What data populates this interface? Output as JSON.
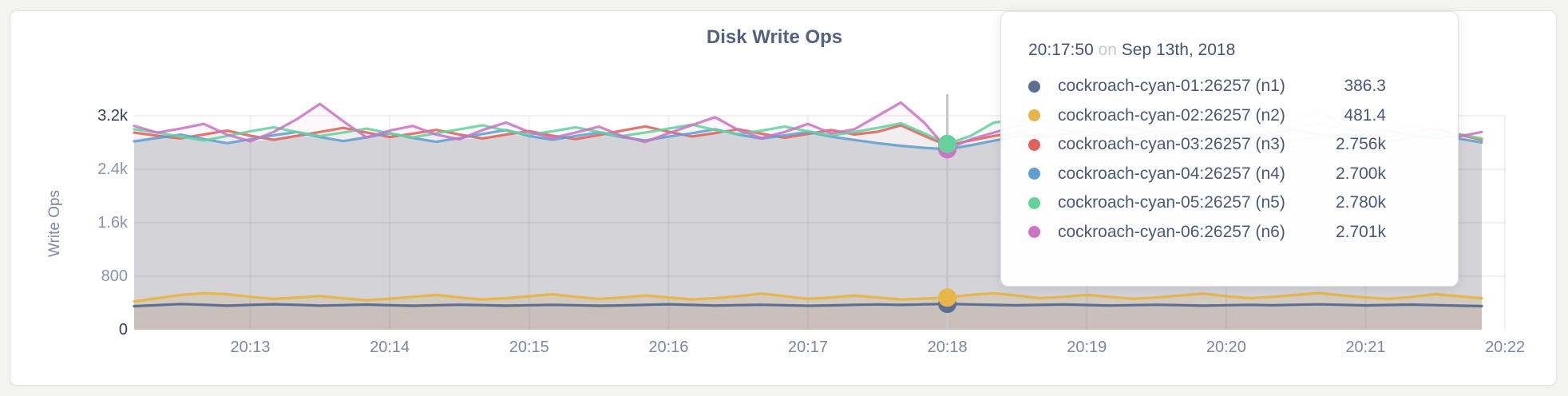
{
  "card": {
    "title": "Disk Write Ops"
  },
  "y_axis": {
    "label": "Write Ops",
    "ticks": [
      {
        "label": "3.2k",
        "value": 3200,
        "emphasis": true
      },
      {
        "label": "2.4k",
        "value": 2400,
        "emphasis": false
      },
      {
        "label": "1.6k",
        "value": 1600,
        "emphasis": false
      },
      {
        "label": "800",
        "value": 800,
        "emphasis": false
      },
      {
        "label": "0",
        "value": 0,
        "emphasis": true
      }
    ]
  },
  "x_axis": {
    "labels": [
      "20:13",
      "20:14",
      "20:15",
      "20:16",
      "20:17",
      "20:18",
      "20:19",
      "20:20",
      "20:21",
      "20:22"
    ]
  },
  "tooltip": {
    "time": "20:17:50",
    "preposition": "on",
    "date": "Sep 13th, 2018",
    "rows": [
      {
        "name": "cockroach-cyan-01:26257 (n1)",
        "value": "386.3",
        "color": "#5c6e91"
      },
      {
        "name": "cockroach-cyan-02:26257 (n2)",
        "value": "481.4",
        "color": "#e7b64b"
      },
      {
        "name": "cockroach-cyan-03:26257 (n3)",
        "value": "2.756k",
        "color": "#df625c"
      },
      {
        "name": "cockroach-cyan-04:26257 (n4)",
        "value": "2.700k",
        "color": "#5f9fd2"
      },
      {
        "name": "cockroach-cyan-05:26257 (n5)",
        "value": "2.780k",
        "color": "#67d19e"
      },
      {
        "name": "cockroach-cyan-06:26257 (n6)",
        "value": "2.701k",
        "color": "#cd74c4"
      }
    ]
  },
  "chart_data": {
    "type": "area",
    "title": "Disk Write Ops",
    "xlabel": "",
    "ylabel": "Write Ops",
    "ylim": [
      0,
      3200
    ],
    "grid": true,
    "x_window_start": "20:12:10",
    "x_window_end": "20:21:50",
    "x_step_seconds": 10,
    "x_tick_labels": [
      "20:13",
      "20:14",
      "20:15",
      "20:16",
      "20:17",
      "20:18",
      "20:19",
      "20:20",
      "20:21",
      "20:22"
    ],
    "hover": {
      "time": "20:17:50",
      "date": "Sep 13th, 2018",
      "index": 35
    },
    "series": [
      {
        "name": "cockroach-cyan-01:26257 (n1)",
        "color": "#5c6e91",
        "band": "low",
        "values": [
          352,
          368,
          384,
          374,
          360,
          371,
          381,
          372,
          361,
          368,
          376,
          366,
          358,
          366,
          374,
          368,
          360,
          366,
          372,
          366,
          358,
          364,
          372,
          381,
          371,
          362,
          368,
          374,
          366,
          358,
          364,
          372,
          379,
          371,
          380,
          386.3,
          379,
          371,
          365,
          371,
          377,
          370,
          362,
          368,
          374,
          368,
          360,
          366,
          372,
          366,
          374,
          380,
          372,
          364,
          370,
          376,
          368,
          360,
          354
        ]
      },
      {
        "name": "cockroach-cyan-02:26257 (n2)",
        "color": "#e7b64b",
        "band": "low",
        "values": [
          424,
          472,
          521,
          546,
          531,
          492,
          461,
          482,
          503,
          471,
          442,
          463,
          492,
          521,
          482,
          452,
          472,
          502,
          531,
          492,
          462,
          482,
          512,
          482,
          452,
          472,
          502,
          541,
          502,
          462,
          482,
          512,
          482,
          452,
          466,
          481.4,
          521,
          546,
          511,
          472,
          492,
          521,
          492,
          462,
          482,
          512,
          541,
          502,
          472,
          492,
          521,
          551,
          512,
          482,
          462,
          492,
          531,
          502,
          472
        ]
      },
      {
        "name": "cockroach-cyan-03:26257 (n3)",
        "color": "#df625c",
        "band": "high",
        "values": [
          2948,
          2901,
          2862,
          2921,
          2978,
          2902,
          2841,
          2899,
          2958,
          3018,
          2951,
          2882,
          2932,
          2989,
          2921,
          2861,
          2918,
          2971,
          2902,
          2851,
          2911,
          2978,
          3041,
          2961,
          2891,
          2941,
          2998,
          2931,
          2871,
          2929,
          2988,
          2921,
          2961,
          3058,
          2901,
          2756,
          2831,
          2898,
          2951,
          2881,
          2921,
          2968,
          2901,
          2851,
          2911,
          2958,
          3018,
          2951,
          2891,
          2941,
          2988,
          2921,
          2871,
          2931,
          2978,
          2911,
          2861,
          2918,
          2841
        ]
      },
      {
        "name": "cockroach-cyan-04:26257 (n4)",
        "color": "#5f9fd2",
        "band": "high",
        "values": [
          2818,
          2868,
          2918,
          2851,
          2791,
          2849,
          2908,
          2958,
          2881,
          2821,
          2878,
          2938,
          2868,
          2811,
          2868,
          2928,
          2988,
          2898,
          2841,
          2898,
          2948,
          2881,
          2831,
          2888,
          2938,
          2998,
          2918,
          2858,
          2908,
          2958,
          2888,
          2838,
          2791,
          2751,
          2721,
          2700,
          2758,
          2828,
          2888,
          2928,
          2858,
          2811,
          2868,
          2918,
          2978,
          2898,
          2848,
          2898,
          2948,
          2878,
          2831,
          2888,
          2938,
          2868,
          2821,
          2878,
          2928,
          2858,
          2801
        ]
      },
      {
        "name": "cockroach-cyan-05:26257 (n5)",
        "color": "#67d19e",
        "band": "high",
        "values": [
          2998,
          2948,
          2888,
          2831,
          2898,
          2968,
          3028,
          2958,
          2898,
          2948,
          3008,
          2938,
          2878,
          2938,
          2998,
          3058,
          2978,
          2918,
          2968,
          3028,
          2958,
          2898,
          2948,
          3008,
          3068,
          2988,
          2928,
          2978,
          3038,
          2968,
          2908,
          2958,
          3018,
          3088,
          2938,
          2780,
          2898,
          3098,
          3138,
          3038,
          2958,
          3008,
          3068,
          2998,
          2938,
          2988,
          3048,
          2978,
          2918,
          2968,
          3028,
          3088,
          3008,
          2948,
          2998,
          3058,
          2988,
          2928,
          2858
        ]
      },
      {
        "name": "cockroach-cyan-06:26257 (n6)",
        "color": "#cd74c4",
        "band": "high",
        "values": [
          3048,
          2948,
          3008,
          3078,
          2918,
          2818,
          2958,
          3148,
          3378,
          3118,
          2878,
          2978,
          3048,
          2918,
          2848,
          2988,
          3098,
          2958,
          2868,
          2948,
          3038,
          2898,
          2808,
          2938,
          3058,
          3178,
          2988,
          2868,
          2958,
          3078,
          2938,
          2998,
          3198,
          3398,
          3098,
          2701,
          2848,
          2948,
          3048,
          3148,
          2998,
          2898,
          2958,
          3028,
          2888,
          2938,
          2998,
          2918,
          2858,
          2928,
          3148,
          3278,
          3058,
          2938,
          2878,
          2948,
          3018,
          2888,
          2958
        ]
      }
    ]
  },
  "colors": {
    "page_bg": "#f3f3f0",
    "card_bg": "#ffffff",
    "area_base": "#e3e3e6",
    "hover_line": "#c7c7c9",
    "title_text": "#53627e",
    "tick_dark": "#2f3e5c",
    "tick_light": "#8a95a9"
  }
}
